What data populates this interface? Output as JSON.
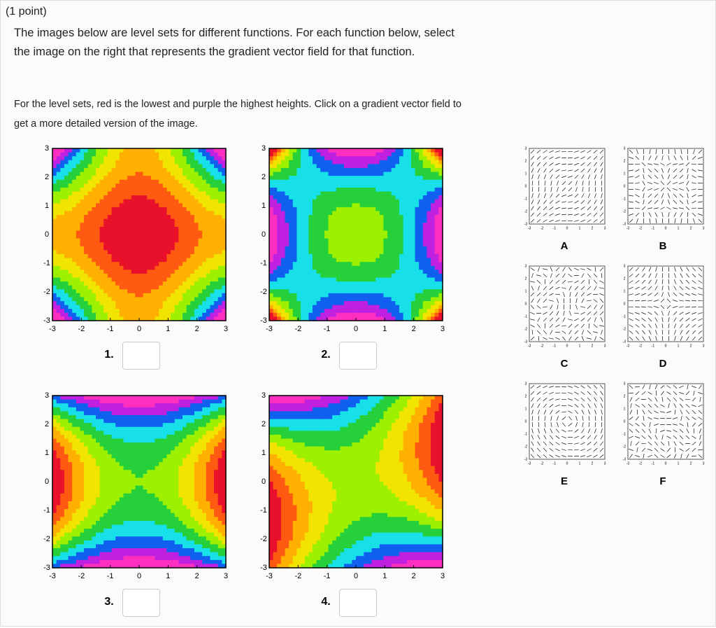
{
  "header": {
    "points": "(1 point)"
  },
  "question": "The images below are level sets for different functions. For each function below, select the image on the right that represents the gradient vector field for that function.",
  "note": "For the level sets, red is the lowest and purple the highest heights. Click on a gradient vector field to get a more detailed version of the image.",
  "axis_ticks": [
    -3,
    -2,
    -1,
    0,
    1,
    2,
    3
  ],
  "level_sets": [
    {
      "label": "1."
    },
    {
      "label": "2."
    },
    {
      "label": "3."
    },
    {
      "label": "4."
    }
  ],
  "vector_fields": [
    {
      "label": "A"
    },
    {
      "label": "B"
    },
    {
      "label": "C"
    },
    {
      "label": "D"
    },
    {
      "label": "E"
    },
    {
      "label": "F"
    }
  ]
}
